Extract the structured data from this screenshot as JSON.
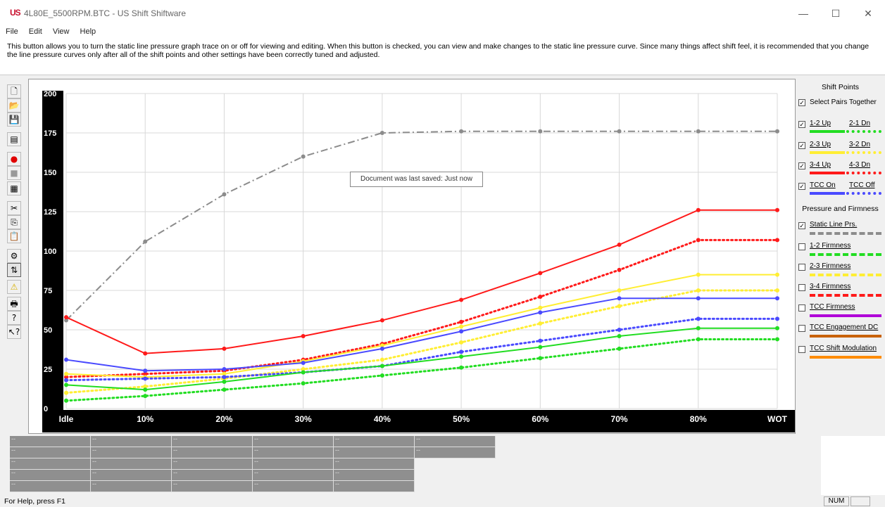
{
  "window": {
    "logo": "US",
    "title": "4L80E_5500RPM.BTC - US Shift Shiftware",
    "minimize": "—",
    "maximize": "☐",
    "close": "✕"
  },
  "menu": [
    "File",
    "Edit",
    "View",
    "Help"
  ],
  "help_text": "This button allows you to turn the static line pressure graph trace on or off for viewing and editing. When this button is checked, you can view and make changes to the static line pressure curve. Since many things affect shift feel, it is recommended that you change the line pressure curves only after all of the shift points and other settings have been correctly tuned and adjusted.",
  "toolbar": [
    {
      "icon": "new-document-icon",
      "glyph": "🗋"
    },
    {
      "icon": "open-folder-icon",
      "glyph": "📂"
    },
    {
      "icon": "save-icon",
      "glyph": "💾"
    },
    {
      "icon": "file-properties-icon",
      "glyph": "▤"
    },
    {
      "icon": "record-icon",
      "glyph": "●"
    },
    {
      "icon": "stop-icon",
      "glyph": "■"
    },
    {
      "icon": "graph-settings-icon",
      "glyph": "▦"
    },
    {
      "icon": "cut-icon",
      "glyph": "✂"
    },
    {
      "icon": "copy-icon",
      "glyph": "⎘"
    },
    {
      "icon": "paste-icon",
      "glyph": "📋"
    },
    {
      "icon": "settings-gear-icon",
      "glyph": "⚙"
    },
    {
      "icon": "static-line-pressure-icon",
      "glyph": "⇅"
    },
    {
      "icon": "warning-icon",
      "glyph": "⚠"
    },
    {
      "icon": "print-icon",
      "glyph": "🖶"
    },
    {
      "icon": "help-icon",
      "glyph": "?"
    },
    {
      "icon": "context-help-icon",
      "glyph": "↖?"
    }
  ],
  "tooltip": "Document was last saved: Just now",
  "chart_data": {
    "type": "line",
    "categories": [
      "Idle",
      "10%",
      "20%",
      "30%",
      "40%",
      "50%",
      "60%",
      "70%",
      "80%",
      "WOT"
    ],
    "yticks": [
      0,
      25,
      50,
      75,
      100,
      125,
      150,
      175,
      200
    ],
    "ylim": [
      0,
      200
    ],
    "grid": true,
    "series": [
      {
        "name": "Static Line Prs.",
        "color": "#8c8c8c",
        "style": "dashdot",
        "values": [
          56,
          106,
          136,
          160,
          175,
          176,
          176,
          176,
          176,
          176
        ]
      },
      {
        "name": "3-4 Up",
        "color": "#ff1a1a",
        "style": "solid",
        "values": [
          58,
          35,
          38,
          46,
          56,
          69,
          86,
          104,
          126,
          126
        ]
      },
      {
        "name": "4-3 Dn",
        "color": "#ff1a1a",
        "style": "dotted",
        "values": [
          20,
          22,
          24,
          31,
          41,
          55,
          71,
          88,
          107,
          107
        ]
      },
      {
        "name": "2-3 Up",
        "color": "#ffee33",
        "style": "solid",
        "values": [
          22,
          20,
          22,
          30,
          40,
          52,
          64,
          75,
          85,
          85
        ]
      },
      {
        "name": "3-2 Dn",
        "color": "#ffee33",
        "style": "dotted",
        "values": [
          10,
          14,
          19,
          25,
          31,
          42,
          54,
          65,
          75,
          75
        ]
      },
      {
        "name": "TCC On",
        "color": "#4a4aff",
        "style": "solid",
        "values": [
          31,
          24,
          25,
          29,
          38,
          49,
          61,
          70,
          70,
          70
        ]
      },
      {
        "name": "TCC Off",
        "color": "#4a4aff",
        "style": "dotted",
        "values": [
          18,
          19,
          20,
          23,
          27,
          36,
          43,
          50,
          57,
          57
        ]
      },
      {
        "name": "1-2 Up",
        "color": "#22dd22",
        "style": "solid",
        "values": [
          15,
          12,
          17,
          23,
          27,
          33,
          39,
          46,
          51,
          51
        ]
      },
      {
        "name": "2-1 Dn",
        "color": "#22dd22",
        "style": "dotted",
        "values": [
          5,
          8,
          12,
          16,
          21,
          26,
          32,
          38,
          44,
          44
        ]
      }
    ]
  },
  "legend": {
    "shift_points_title": "Shift Points",
    "select_pairs": {
      "label": "Select Pairs Together",
      "checked": true
    },
    "shift_items": [
      {
        "up": "1-2 Up",
        "dn": "2-1 Dn",
        "checked": true,
        "color": "#22dd22"
      },
      {
        "up": "2-3 Up",
        "dn": "3-2 Dn",
        "checked": true,
        "color": "#ffee33"
      },
      {
        "up": "3-4 Up",
        "dn": "4-3 Dn",
        "checked": true,
        "color": "#ff1a1a"
      },
      {
        "up": "TCC On",
        "dn": "TCC Off",
        "checked": true,
        "color": "#4a4aff"
      }
    ],
    "pressure_title": "Pressure and Firmness",
    "pressure_items": [
      {
        "label": "Static Line Prs.",
        "checked": true,
        "color": "#8c8c8c",
        "style": "dashdot"
      },
      {
        "label": "1-2 Firmness",
        "checked": false,
        "color": "#22dd22",
        "style": "dashdot"
      },
      {
        "label": "2-3 Firmness",
        "checked": false,
        "color": "#ffee33",
        "style": "dashdot"
      },
      {
        "label": "3-4 Firmness",
        "checked": false,
        "color": "#ff1a1a",
        "style": "dashdot"
      },
      {
        "label": "TCC Firmness",
        "checked": false,
        "color": "#b000d8",
        "style": "solid"
      },
      {
        "label": "TCC Engagement DC",
        "checked": false,
        "color": "#c8620a",
        "style": "solid"
      },
      {
        "label": "TCC Shift Modulation",
        "checked": false,
        "color": "#ff8c00",
        "style": "solid"
      }
    ]
  },
  "data_grid_placeholder": "--",
  "status": {
    "help": "For Help, press F1",
    "num": "NUM"
  }
}
